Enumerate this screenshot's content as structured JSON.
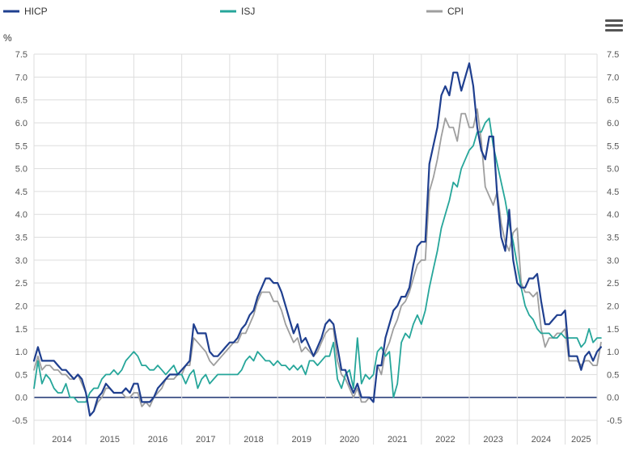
{
  "chart_data": {
    "type": "line",
    "unit": "%",
    "legend_position": "top",
    "grid": true,
    "ylim": [
      -0.5,
      7.5
    ],
    "y_ticks": [
      "-0.5",
      "0.0",
      "0.5",
      "1.0",
      "1.5",
      "2.0",
      "2.5",
      "3.0",
      "3.5",
      "4.0",
      "4.5",
      "5.0",
      "5.5",
      "6.0",
      "6.5",
      "7.0",
      "7.5"
    ],
    "x_tick_labels": [
      "2014",
      "2015",
      "2016",
      "2017",
      "2018",
      "2019",
      "2020",
      "2021",
      "2022",
      "2023",
      "2024",
      "2025"
    ],
    "x_start": "2013-12",
    "x_end": "2025-09",
    "series": [
      {
        "name": "HICP",
        "color": "#1f3f8f",
        "values": [
          0.8,
          1.1,
          0.8,
          0.8,
          0.8,
          0.8,
          0.7,
          0.6,
          0.6,
          0.5,
          0.4,
          0.5,
          0.4,
          0.1,
          -0.4,
          -0.3,
          0.0,
          0.1,
          0.3,
          0.2,
          0.1,
          0.1,
          0.1,
          0.2,
          0.1,
          0.3,
          0.3,
          -0.1,
          -0.1,
          -0.1,
          0.0,
          0.2,
          0.3,
          0.4,
          0.5,
          0.5,
          0.5,
          0.6,
          0.7,
          0.8,
          1.6,
          1.4,
          1.4,
          1.4,
          1.0,
          0.9,
          0.9,
          1.0,
          1.1,
          1.2,
          1.2,
          1.3,
          1.5,
          1.6,
          1.8,
          1.9,
          2.2,
          2.4,
          2.6,
          2.6,
          2.5,
          2.5,
          2.3,
          2.0,
          1.7,
          1.4,
          1.6,
          1.2,
          1.3,
          1.1,
          0.9,
          1.1,
          1.3,
          1.6,
          1.7,
          1.6,
          1.1,
          0.6,
          0.6,
          0.3,
          0.1,
          0.3,
          0.0,
          0.0,
          0.0,
          -0.1,
          0.7,
          0.7,
          1.3,
          1.6,
          1.9,
          2.0,
          2.2,
          2.2,
          2.4,
          2.9,
          3.3,
          3.4,
          3.4,
          5.1,
          5.5,
          5.9,
          6.6,
          6.8,
          6.6,
          7.1,
          7.1,
          6.7,
          7.0,
          7.3,
          6.8,
          5.9,
          5.4,
          5.2,
          5.7,
          5.7,
          4.4,
          3.5,
          3.2,
          4.1,
          3.0,
          2.5,
          2.4,
          2.4,
          2.6,
          2.6,
          2.7,
          2.1,
          1.6,
          1.6,
          1.7,
          1.8,
          1.8,
          1.9,
          0.9,
          0.9,
          0.9,
          0.6,
          0.9,
          1.0,
          0.8,
          1.0,
          1.1
        ]
      },
      {
        "name": "ISJ",
        "color": "#26a69a",
        "values": [
          0.2,
          0.8,
          0.3,
          0.5,
          0.4,
          0.2,
          0.1,
          0.1,
          0.3,
          0.0,
          0.0,
          -0.1,
          -0.1,
          -0.1,
          0.1,
          0.2,
          0.2,
          0.4,
          0.5,
          0.5,
          0.6,
          0.5,
          0.6,
          0.8,
          0.9,
          1.0,
          0.9,
          0.7,
          0.7,
          0.6,
          0.6,
          0.7,
          0.6,
          0.5,
          0.6,
          0.7,
          0.5,
          0.5,
          0.3,
          0.5,
          0.6,
          0.2,
          0.4,
          0.5,
          0.3,
          0.4,
          0.5,
          0.5,
          0.5,
          0.5,
          0.5,
          0.5,
          0.6,
          0.8,
          0.9,
          0.8,
          1.0,
          0.9,
          0.8,
          0.8,
          0.7,
          0.8,
          0.7,
          0.7,
          0.6,
          0.7,
          0.6,
          0.7,
          0.5,
          0.8,
          0.8,
          0.7,
          0.8,
          0.9,
          0.9,
          1.2,
          0.4,
          0.2,
          0.5,
          0.6,
          0.2,
          1.3,
          0.3,
          0.5,
          0.4,
          0.5,
          1.0,
          1.1,
          0.9,
          1.0,
          0.0,
          0.3,
          1.2,
          1.4,
          1.3,
          1.6,
          1.8,
          1.6,
          1.9,
          2.4,
          2.8,
          3.2,
          3.7,
          4.0,
          4.3,
          4.7,
          4.6,
          5.0,
          5.2,
          5.4,
          5.5,
          5.8,
          5.8,
          6.0,
          6.1,
          5.5,
          5.1,
          4.7,
          4.3,
          3.8,
          3.4,
          2.9,
          2.4,
          2.0,
          1.8,
          1.7,
          1.5,
          1.4,
          1.4,
          1.4,
          1.3,
          1.3,
          1.4,
          1.3,
          1.3,
          1.3,
          1.3,
          1.1,
          1.2,
          1.5,
          1.2,
          1.3,
          1.3
        ]
      },
      {
        "name": "CPI",
        "color": "#9e9e9e",
        "values": [
          0.6,
          0.9,
          0.6,
          0.7,
          0.7,
          0.6,
          0.6,
          0.5,
          0.5,
          0.4,
          0.4,
          0.5,
          0.3,
          0.1,
          -0.4,
          -0.3,
          -0.1,
          0.0,
          0.2,
          0.2,
          0.1,
          0.1,
          0.1,
          0.0,
          0.0,
          0.1,
          0.1,
          -0.2,
          -0.1,
          -0.2,
          0.0,
          0.1,
          0.2,
          0.4,
          0.4,
          0.4,
          0.5,
          0.5,
          0.7,
          0.7,
          1.3,
          1.2,
          1.1,
          1.0,
          0.8,
          0.7,
          0.8,
          0.9,
          1.0,
          1.1,
          1.2,
          1.2,
          1.4,
          1.4,
          1.6,
          1.8,
          2.1,
          2.3,
          2.3,
          2.3,
          2.1,
          2.1,
          1.9,
          1.6,
          1.4,
          1.2,
          1.3,
          1.0,
          1.1,
          1.0,
          0.9,
          1.0,
          1.2,
          1.4,
          1.5,
          1.5,
          0.8,
          0.5,
          0.4,
          0.2,
          0.0,
          0.2,
          -0.1,
          -0.1,
          0.0,
          -0.1,
          0.7,
          0.5,
          1.0,
          1.2,
          1.5,
          1.7,
          2.0,
          2.1,
          2.3,
          2.6,
          2.9,
          3.0,
          3.0,
          4.5,
          4.8,
          5.2,
          5.7,
          6.1,
          5.9,
          5.9,
          5.6,
          6.2,
          6.2,
          5.9,
          5.9,
          6.3,
          5.6,
          4.6,
          4.4,
          4.2,
          4.5,
          3.8,
          3.4,
          3.2,
          3.6,
          3.7,
          2.5,
          2.3,
          2.3,
          2.2,
          2.3,
          1.5,
          1.1,
          1.3,
          1.3,
          1.4,
          1.4,
          1.5,
          0.8,
          0.8,
          0.8,
          0.7,
          0.8,
          0.8,
          0.7,
          0.7,
          1.2
        ]
      }
    ]
  }
}
